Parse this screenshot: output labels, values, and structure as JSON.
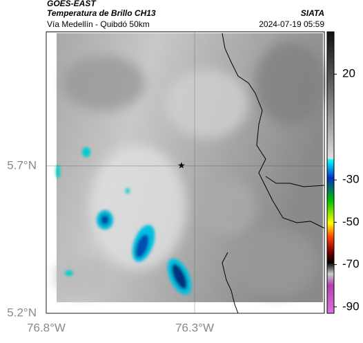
{
  "map": {
    "title": "GOES-EAST",
    "subtitle": "Temperatura de Brillo CH13",
    "source": "SIATA",
    "route": "Vía Medellín - Quibdó 50km",
    "timestamp": "2024-07-19 05:59",
    "xlim": [
      -76.8,
      -75.863
    ],
    "ylim": [
      5.2,
      6.155
    ],
    "xticks": [
      {
        "value": -76.8,
        "label": "76.8°W"
      },
      {
        "value": -76.3,
        "label": "76.3°W"
      }
    ],
    "yticks": [
      {
        "value": 5.7,
        "label": "5.7°N"
      },
      {
        "value": 5.2,
        "label": "5.2°N"
      }
    ],
    "colorbar": {
      "lim": [
        -93,
        40
      ],
      "ticks": [
        20,
        -30,
        -50,
        -70,
        -90
      ]
    }
  }
}
